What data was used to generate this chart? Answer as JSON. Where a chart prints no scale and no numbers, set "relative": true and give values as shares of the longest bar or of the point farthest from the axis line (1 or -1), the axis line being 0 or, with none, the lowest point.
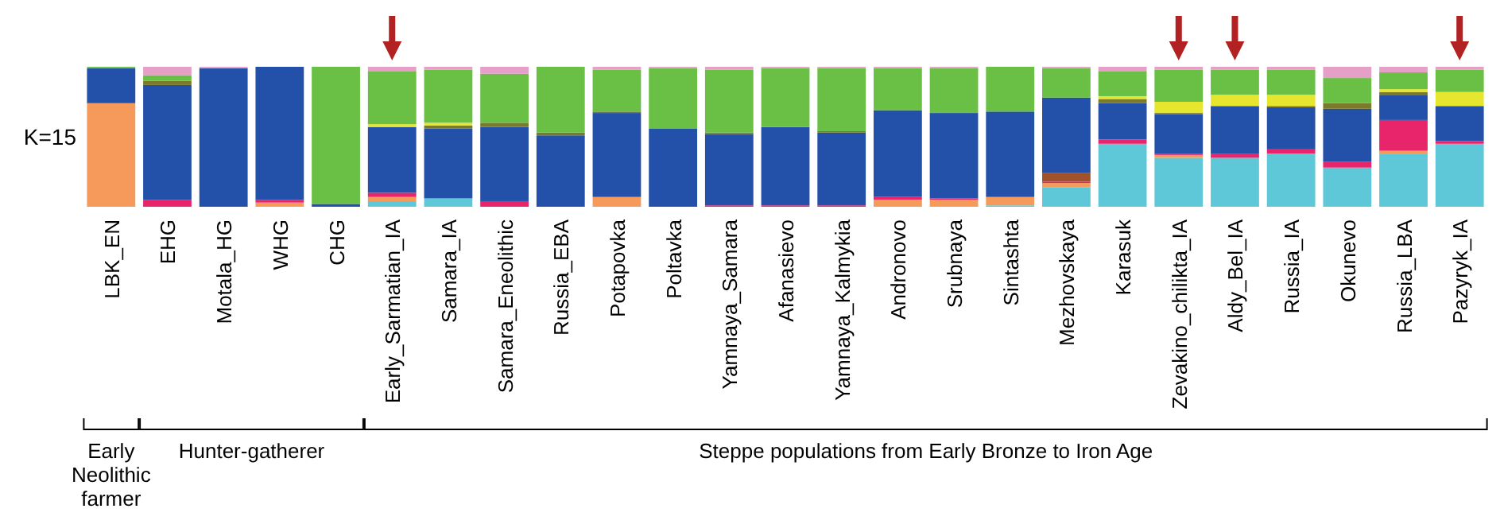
{
  "chart_data": {
    "type": "bar",
    "stacked": true,
    "relative": true,
    "categories": [
      "LBK_EN",
      "EHG",
      "Motala_HG",
      "WHG",
      "CHG",
      "Early_Sarmatian_IA",
      "Samara_IA",
      "Samara_Eneolithic",
      "Russia_EBA",
      "Potapovka",
      "Poltavka",
      "Yamnaya_Samara",
      "Afanasievo",
      "Yamnaya_Kalmykia",
      "Andronovo",
      "Srubnaya",
      "Sintashta",
      "Mezhovskaya",
      "Karasuk",
      "Zevakino_chilikta_IA",
      "Aldy_Bel_IA",
      "Russia_IA",
      "Okunevo",
      "Russia_LBA",
      "Pazyryk_IA"
    ],
    "series": [
      {
        "color": "#5ec8d8",
        "values": [
          0,
          0,
          0,
          0,
          0,
          0.04,
          0.06,
          0,
          0,
          0,
          0,
          0,
          0,
          0,
          0,
          0,
          0.01,
          0.14,
          0.45,
          0.35,
          0.35,
          0.38,
          0.28,
          0.38,
          0.45
        ]
      },
      {
        "color": "#f59a5a",
        "values": [
          0.74,
          0,
          0,
          0.03,
          0,
          0.03,
          0,
          0,
          0,
          0.07,
          0,
          0,
          0,
          0,
          0.05,
          0.05,
          0.06,
          0.03,
          0,
          0.02,
          0,
          0,
          0,
          0.02,
          0
        ]
      },
      {
        "color": "#e8246a",
        "values": [
          0,
          0.05,
          0,
          0.02,
          0,
          0.03,
          0,
          0.04,
          0,
          0,
          0,
          0.01,
          0.01,
          0.01,
          0.02,
          0.01,
          0,
          0.01,
          0.03,
          0.01,
          0.03,
          0.03,
          0.04,
          0.22,
          0.02
        ]
      },
      {
        "color": "#a0522d",
        "values": [
          0,
          0,
          0,
          0,
          0,
          0,
          0,
          0,
          0,
          0,
          0,
          0,
          0,
          0,
          0,
          0,
          0,
          0.06,
          0,
          0,
          0,
          0,
          0,
          0,
          0
        ]
      },
      {
        "color": "#2350a8",
        "values": [
          0.25,
          0.82,
          0.99,
          0.95,
          0.02,
          0.47,
          0.5,
          0.53,
          0.51,
          0.6,
          0.56,
          0.51,
          0.56,
          0.52,
          0.62,
          0.61,
          0.61,
          0.54,
          0.26,
          0.28,
          0.34,
          0.3,
          0.38,
          0.18,
          0.25
        ]
      },
      {
        "color": "#7a7a2a",
        "values": [
          0,
          0.03,
          0,
          0,
          0,
          0,
          0.02,
          0.03,
          0.02,
          0.01,
          0,
          0.01,
          0,
          0.01,
          0,
          0,
          0,
          0,
          0.03,
          0.01,
          0,
          0.01,
          0.04,
          0.02,
          0
        ]
      },
      {
        "color": "#e6e62e",
        "values": [
          0,
          0,
          0,
          0,
          0,
          0.02,
          0.02,
          0,
          0,
          0,
          0,
          0,
          0,
          0,
          0,
          0,
          0,
          0,
          0.02,
          0.08,
          0.08,
          0.08,
          0,
          0.02,
          0.1
        ]
      },
      {
        "color": "#6abf45",
        "values": [
          0.01,
          0.04,
          0,
          0,
          0.98,
          0.38,
          0.38,
          0.35,
          0.47,
          0.3,
          0.43,
          0.45,
          0.42,
          0.45,
          0.3,
          0.32,
          0.32,
          0.21,
          0.18,
          0.23,
          0.18,
          0.18,
          0.18,
          0.12,
          0.16
        ]
      },
      {
        "color": "#e6a0c8",
        "values": [
          0,
          0.06,
          0.01,
          0,
          0,
          0.03,
          0.02,
          0.05,
          0,
          0.02,
          0.01,
          0.02,
          0.01,
          0.01,
          0.01,
          0.01,
          0,
          0.01,
          0.03,
          0.02,
          0.02,
          0.02,
          0.08,
          0.04,
          0.02
        ]
      }
    ],
    "annotations": [
      "K=15",
      "Early Neolithic farmer",
      "Hunter-gatherer",
      "Steppe populations from Early Bronze to Iron Age"
    ]
  }
}
